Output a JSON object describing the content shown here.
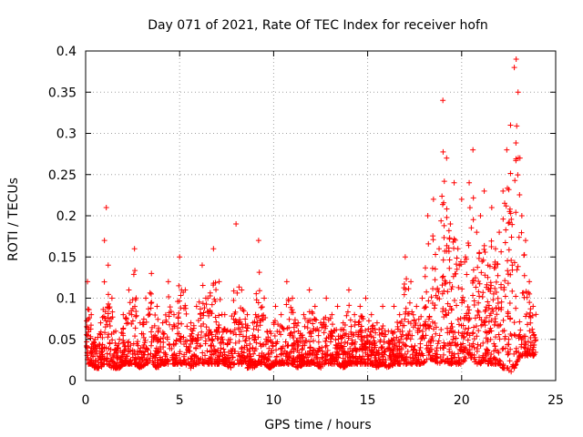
{
  "chart_data": {
    "type": "scatter",
    "title": "Day 071 of 2021, Rate Of TEC Index for receiver hofn",
    "xlabel": "GPS time / hours",
    "ylabel": "ROTI / TECUs",
    "xlim": [
      0,
      25
    ],
    "ylim": [
      0,
      0.4
    ],
    "xticks": [
      "0",
      "5",
      "10",
      "15",
      "20",
      "25"
    ],
    "yticks": [
      "0",
      "0.05",
      "0.1",
      "0.15",
      "0.2",
      "0.25",
      "0.3",
      "0.35",
      "0.4"
    ],
    "grid": true,
    "marker": "plus",
    "color": "#ff0000",
    "series": [
      {
        "x": [
          0.1,
          0.3,
          0.5,
          0.8,
          1.0,
          1.1,
          1.2,
          1.4,
          1.6,
          1.8,
          2.0,
          2.3,
          2.6,
          2.9,
          3.2,
          3.5,
          3.8,
          4.1,
          4.4,
          4.7,
          5.0,
          5.3,
          5.6,
          5.9,
          6.2,
          6.5,
          6.8,
          7.1,
          7.4,
          7.7,
          8.0,
          8.3,
          8.6,
          8.9,
          9.2,
          9.5,
          9.8,
          10.1,
          10.4,
          10.7,
          11.0,
          11.3,
          11.6,
          11.9,
          12.2,
          12.5,
          12.8,
          13.1,
          13.4,
          13.7,
          14.0,
          14.3,
          14.6,
          14.9,
          15.2,
          15.5,
          15.8,
          16.1,
          16.4,
          16.7,
          17.0,
          17.3,
          17.6,
          17.9,
          18.2,
          18.5,
          18.8,
          19.0,
          19.2,
          19.4,
          19.6,
          19.8,
          20.0,
          20.2,
          20.4,
          20.6,
          20.8,
          21.0,
          21.2,
          21.4,
          21.6,
          21.8,
          22.0,
          22.2,
          22.4,
          22.6,
          22.8,
          22.9,
          23.0,
          23.1,
          23.2,
          23.4,
          23.6,
          23.8
        ],
        "y": [
          0.12,
          0.08,
          0.05,
          0.07,
          0.17,
          0.21,
          0.14,
          0.1,
          0.06,
          0.05,
          0.08,
          0.11,
          0.16,
          0.07,
          0.1,
          0.13,
          0.09,
          0.07,
          0.12,
          0.08,
          0.15,
          0.11,
          0.07,
          0.09,
          0.14,
          0.1,
          0.16,
          0.12,
          0.08,
          0.06,
          0.19,
          0.11,
          0.08,
          0.07,
          0.17,
          0.1,
          0.06,
          0.09,
          0.08,
          0.12,
          0.1,
          0.07,
          0.08,
          0.11,
          0.09,
          0.07,
          0.1,
          0.08,
          0.09,
          0.07,
          0.11,
          0.08,
          0.09,
          0.1,
          0.08,
          0.07,
          0.09,
          0.06,
          0.09,
          0.08,
          0.15,
          0.12,
          0.09,
          0.1,
          0.2,
          0.22,
          0.16,
          0.34,
          0.27,
          0.19,
          0.24,
          0.16,
          0.22,
          0.15,
          0.24,
          0.28,
          0.18,
          0.2,
          0.23,
          0.14,
          0.21,
          0.16,
          0.18,
          0.23,
          0.28,
          0.31,
          0.38,
          0.39,
          0.35,
          0.27,
          0.2,
          0.17,
          0.12,
          0.09
        ],
        "floor_y": [
          0.02,
          0.02,
          0.015,
          0.015,
          0.02,
          0.02,
          0.02,
          0.015,
          0.015,
          0.015,
          0.02,
          0.02,
          0.02,
          0.015,
          0.02,
          0.02,
          0.015,
          0.02,
          0.02,
          0.02,
          0.02,
          0.02,
          0.015,
          0.02,
          0.02,
          0.02,
          0.02,
          0.02,
          0.02,
          0.015,
          0.02,
          0.02,
          0.015,
          0.015,
          0.02,
          0.02,
          0.015,
          0.02,
          0.02,
          0.02,
          0.02,
          0.015,
          0.02,
          0.02,
          0.02,
          0.015,
          0.02,
          0.02,
          0.02,
          0.015,
          0.02,
          0.02,
          0.02,
          0.02,
          0.02,
          0.015,
          0.02,
          0.015,
          0.02,
          0.02,
          0.02,
          0.02,
          0.02,
          0.02,
          0.025,
          0.025,
          0.02,
          0.025,
          0.02,
          0.02,
          0.02,
          0.02,
          0.02,
          0.025,
          0.03,
          0.025,
          0.02,
          0.02,
          0.025,
          0.02,
          0.02,
          0.02,
          0.02,
          0.015,
          0.015,
          0.01,
          0.015,
          0.02,
          0.025,
          0.03,
          0.03,
          0.03,
          0.03,
          0.03
        ]
      }
    ]
  }
}
